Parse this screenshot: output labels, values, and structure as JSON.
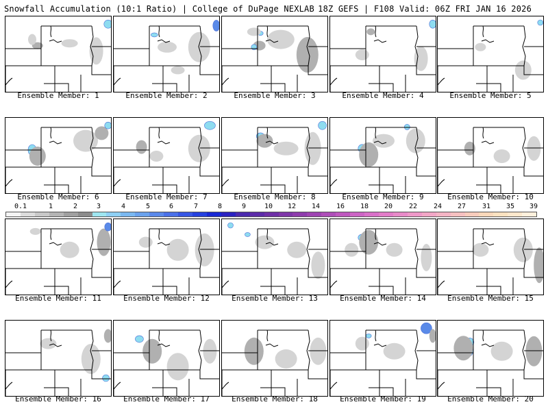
{
  "header": {
    "left": "Snowfall Accumulation (10:1 Ratio) | College of DuPage NEXLAB",
    "right": "18Z GEFS | F108 Valid: 06Z FRI JAN 16 2026"
  },
  "members": [
    {
      "label": "Ensemble Member: 1"
    },
    {
      "label": "Ensemble Member: 2"
    },
    {
      "label": "Ensemble Member: 3"
    },
    {
      "label": "Ensemble Member: 4"
    },
    {
      "label": "Ensemble Member: 5"
    },
    {
      "label": "Ensemble Member: 6"
    },
    {
      "label": "Ensemble Member: 7"
    },
    {
      "label": "Ensemble Member: 8"
    },
    {
      "label": "Ensemble Member: 9"
    },
    {
      "label": "Ensemble Member: 10"
    },
    {
      "label": "Ensemble Member: 11"
    },
    {
      "label": "Ensemble Member: 12"
    },
    {
      "label": "Ensemble Member: 13"
    },
    {
      "label": "Ensemble Member: 14"
    },
    {
      "label": "Ensemble Member: 15"
    },
    {
      "label": "Ensemble Member: 16"
    },
    {
      "label": "Ensemble Member: 17"
    },
    {
      "label": "Ensemble Member: 18"
    },
    {
      "label": "Ensemble Member: 19"
    },
    {
      "label": "Ensemble Member: 20"
    }
  ],
  "scale": {
    "labels": [
      "0.1",
      "1",
      "2",
      "3",
      "4",
      "5",
      "6",
      "7",
      "8",
      "9",
      "10",
      "12",
      "14",
      "16",
      "18",
      "20",
      "22",
      "24",
      "27",
      "31",
      "35",
      "39"
    ],
    "colors": [
      "#f4f4f4",
      "#dcdcdc",
      "#c8c8c8",
      "#b4b4b4",
      "#a0a0a0",
      "#8c8c8c",
      "#9ee6f0",
      "#8ed0f4",
      "#7ab8f0",
      "#6aa2ec",
      "#5a88ea",
      "#4a70e8",
      "#3656e4",
      "#2440de",
      "#1828d4",
      "#2a22c0",
      "#4a2aae",
      "#5c2ca8",
      "#6e30a6",
      "#7e36a8",
      "#8e3cac",
      "#9e44b2",
      "#ae4eb8",
      "#be58be",
      "#cc64c4",
      "#d870c8",
      "#e27cc8",
      "#e88ac8",
      "#ee98c8",
      "#f2a6c6",
      "#f4b4c4",
      "#f6c0c0",
      "#f8ccbc",
      "#fad8ba",
      "#fce2c0",
      "#fee8cc",
      "#fff0dc"
    ]
  },
  "colors": {
    "shade_light": "#d4d4d4",
    "shade_mid": "#b0b0b0",
    "shade_dark": "#909090",
    "snow_blue": "#8edcf0",
    "snow_deep": "#5a8ae8"
  }
}
